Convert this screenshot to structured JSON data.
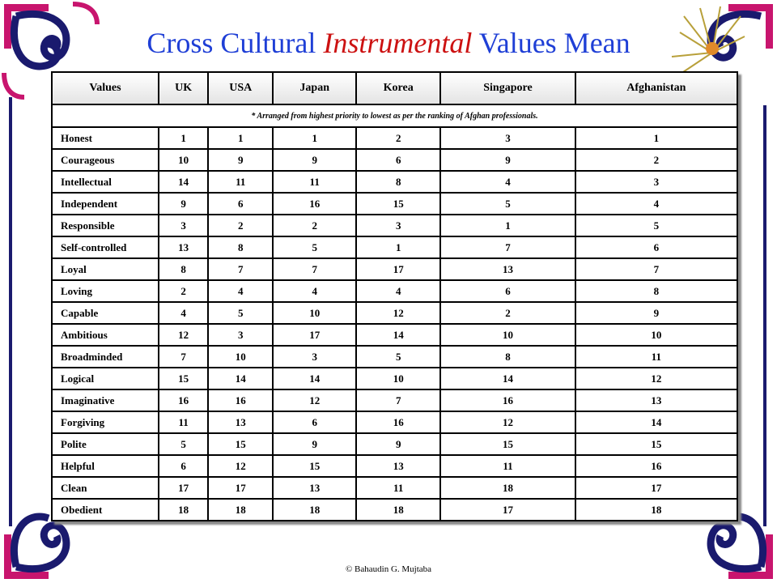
{
  "title": {
    "part1": "Cross Cultural ",
    "part2": "Instrumental",
    "part3": " Values Mean"
  },
  "table": {
    "headers": [
      "Values",
      "UK",
      "USA",
      "Japan",
      "Korea",
      "Singapore",
      "Afghanistan"
    ],
    "note": "* Arranged from highest priority to lowest as per the ranking of Afghan professionals.",
    "rows": [
      [
        "Honest",
        "1",
        "1",
        "1",
        "2",
        "3",
        "1"
      ],
      [
        "Courageous",
        "10",
        "9",
        "9",
        "6",
        "9",
        "2"
      ],
      [
        "Intellectual",
        "14",
        "11",
        "11",
        "8",
        "4",
        "3"
      ],
      [
        "Independent",
        "9",
        "6",
        "16",
        "15",
        "5",
        "4"
      ],
      [
        "Responsible",
        "3",
        "2",
        "2",
        "3",
        "1",
        "5"
      ],
      [
        "Self-controlled",
        "13",
        "8",
        "5",
        "1",
        "7",
        "6"
      ],
      [
        "Loyal",
        "8",
        "7",
        "7",
        "17",
        "13",
        "7"
      ],
      [
        "Loving",
        "2",
        "4",
        "4",
        "4",
        "6",
        "8"
      ],
      [
        "Capable",
        "4",
        "5",
        "10",
        "12",
        "2",
        "9"
      ],
      [
        "Ambitious",
        "12",
        "3",
        "17",
        "14",
        "10",
        "10"
      ],
      [
        "Broadminded",
        "7",
        "10",
        "3",
        "5",
        "8",
        "11"
      ],
      [
        "Logical",
        "15",
        "14",
        "14",
        "10",
        "14",
        "12"
      ],
      [
        "Imaginative",
        "16",
        "16",
        "12",
        "7",
        "16",
        "13"
      ],
      [
        "Forgiving",
        "11",
        "13",
        "6",
        "16",
        "12",
        "14"
      ],
      [
        "Polite",
        "5",
        "15",
        "9",
        "9",
        "15",
        "15"
      ],
      [
        "Helpful",
        "6",
        "12",
        "15",
        "13",
        "11",
        "16"
      ],
      [
        "Clean",
        "17",
        "17",
        "13",
        "11",
        "18",
        "17"
      ],
      [
        "Obedient",
        "18",
        "18",
        "18",
        "18",
        "17",
        "18"
      ]
    ]
  },
  "footer": "© Bahaudin G. Mujtaba",
  "colors": {
    "title_blue": "#1f3fd6",
    "title_red": "#cc1111",
    "ornament_navy": "#1a1a6e",
    "ornament_magenta": "#c8156e"
  }
}
